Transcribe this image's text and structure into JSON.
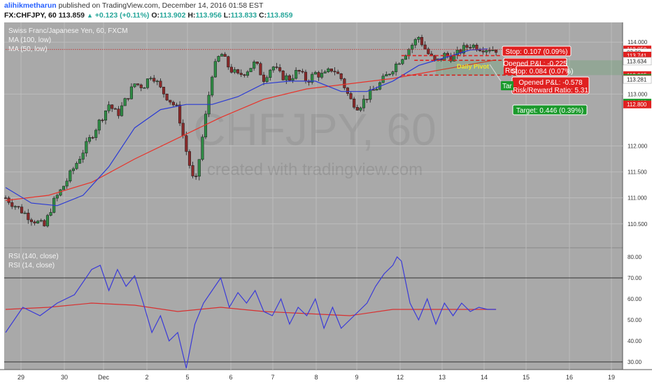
{
  "header": {
    "author": "alihikmetharun",
    "published_text": "published on TradingView.com, December 14, 2016 01:58 EST",
    "symbol": "FX:CHFJPY, 60",
    "last": "113.859",
    "change_arrow": "▲",
    "change": "+0.123 (+0.11%)",
    "o_label": "O:",
    "o_value": "113.902",
    "h_label": "H:",
    "h_value": "113.956",
    "l_label": "L:",
    "l_value": "113.833",
    "c_label": "C:",
    "c_value": "113.859"
  },
  "legend": {
    "title": "Swiss Franc/Japanese Yen, 60, FXCM",
    "ma100": "MA (100, low)",
    "ma50": "MA (50, low)",
    "rsi140": "RSI (140, close)",
    "rsi14": "RSI (14, close)"
  },
  "watermark": {
    "symbol": "CHFJPY, 60",
    "tagline": "created with tradingview.com"
  },
  "colors": {
    "pane_bg": "#a9a9a9",
    "bull_candle": "#2f8c45",
    "bear_candle": "#8a2a2a",
    "ma100": "#e8332a",
    "ma50": "#2b3bd4",
    "rsi14": "#3a3ad8",
    "rsi140": "#d83030",
    "stop_red": "#e02020",
    "target_green": "#1b9a2c"
  },
  "annotations": {
    "stop1": "Stop: 0.107 (0.09%)",
    "opened_pl1": "Opened P&L: -0.225",
    "risk_cut": "Risk",
    "stop2": "Stop: 0.084 (0.07%)",
    "opened_pl2": "Opened P&L: -0.578",
    "rr2": "Risk/Reward Ratio: 5.31",
    "target_cut": "Tar",
    "target": "Target: 0.446 (0.39%)",
    "daily_pivot": "Daily Pivot"
  },
  "price_badges": [
    {
      "value": "113.859",
      "price": 113.859,
      "color": "#e02020"
    },
    {
      "value": "02:08",
      "price": 113.8,
      "color": "#ffffff"
    },
    {
      "value": "113.741",
      "price": 113.741,
      "color": "#e02020"
    },
    {
      "value": "113.650",
      "price": 113.65,
      "color": "#e02020"
    },
    {
      "value": "113.634",
      "price": 113.634,
      "color": "#ffffff"
    },
    {
      "value": "113.365",
      "price": 113.365,
      "color": "#e02020"
    },
    {
      "value": "113.313",
      "price": 113.313,
      "color": "#1b9a2c"
    },
    {
      "value": "113.290",
      "price": 113.29,
      "color": "#e02020"
    },
    {
      "value": "113.281",
      "price": 113.281,
      "color": "#ffffff"
    },
    {
      "value": "112.835",
      "price": 112.835,
      "color": "#1b9a2c"
    },
    {
      "value": "112.800",
      "price": 112.8,
      "color": "#e02020"
    }
  ],
  "chart_data": {
    "type": "candlestick",
    "x_ticks": [
      "29",
      "30",
      "Dec",
      "2",
      "5",
      "6",
      "7",
      "8",
      "9",
      "12",
      "13",
      "14",
      "15",
      "16",
      "19"
    ],
    "price_axis": {
      "ticks": [
        "110.500",
        "111.000",
        "111.500",
        "112.000",
        "113.000",
        "114.000"
      ],
      "ylim": [
        110.2,
        114.3
      ]
    },
    "rsi_axis": {
      "ticks": [
        "30.00",
        "40.00",
        "50.00",
        "60.00",
        "70.00",
        "80.00"
      ],
      "ylim": [
        27,
        83
      ],
      "bands": [
        30,
        70
      ]
    },
    "close_path": [
      [
        0,
        111.0
      ],
      [
        3,
        110.8
      ],
      [
        6,
        110.6
      ],
      [
        9,
        110.45
      ],
      [
        11,
        110.9
      ],
      [
        14,
        111.3
      ],
      [
        16,
        111.6
      ],
      [
        18,
        111.9
      ],
      [
        20,
        112.2
      ],
      [
        22,
        112.5
      ],
      [
        24,
        112.8
      ],
      [
        26,
        112.6
      ],
      [
        28,
        112.9
      ],
      [
        30,
        113.2
      ],
      [
        32,
        113.15
      ],
      [
        34,
        113.4
      ],
      [
        36,
        113.1
      ],
      [
        38,
        112.9
      ],
      [
        40,
        112.7
      ],
      [
        42,
        111.9
      ],
      [
        44,
        111.2
      ],
      [
        46,
        112.3
      ],
      [
        48,
        113.4
      ],
      [
        50,
        113.8
      ],
      [
        52,
        113.5
      ],
      [
        54,
        113.35
      ],
      [
        56,
        113.45
      ],
      [
        58,
        113.6
      ],
      [
        60,
        113.3
      ],
      [
        62,
        113.55
      ],
      [
        64,
        113.35
      ],
      [
        66,
        113.3
      ],
      [
        68,
        113.45
      ],
      [
        70,
        113.25
      ],
      [
        72,
        113.4
      ],
      [
        74,
        113.35
      ],
      [
        76,
        113.5
      ],
      [
        78,
        113.3
      ],
      [
        80,
        112.9
      ],
      [
        82,
        112.75
      ],
      [
        84,
        112.95
      ],
      [
        86,
        113.1
      ],
      [
        88,
        113.3
      ],
      [
        90,
        113.5
      ],
      [
        92,
        113.7
      ],
      [
        94,
        113.9
      ],
      [
        96,
        114.1
      ],
      [
        98,
        113.8
      ],
      [
        100,
        113.6
      ],
      [
        102,
        113.75
      ],
      [
        104,
        113.7
      ],
      [
        106,
        113.85
      ],
      [
        108,
        113.95
      ],
      [
        110,
        113.9
      ],
      [
        112,
        113.88
      ],
      [
        114,
        113.86
      ]
    ],
    "ma100": [
      [
        0,
        110.95
      ],
      [
        10,
        111.05
      ],
      [
        20,
        111.3
      ],
      [
        30,
        111.75
      ],
      [
        40,
        112.15
      ],
      [
        50,
        112.55
      ],
      [
        60,
        112.9
      ],
      [
        70,
        113.1
      ],
      [
        80,
        113.2
      ],
      [
        90,
        113.3
      ],
      [
        100,
        113.45
      ],
      [
        110,
        113.6
      ],
      [
        114,
        113.66
      ]
    ],
    "ma50": [
      [
        0,
        111.2
      ],
      [
        6,
        110.9
      ],
      [
        12,
        110.85
      ],
      [
        18,
        111.05
      ],
      [
        24,
        111.6
      ],
      [
        30,
        112.35
      ],
      [
        36,
        112.7
      ],
      [
        42,
        112.8
      ],
      [
        48,
        112.8
      ],
      [
        54,
        112.95
      ],
      [
        60,
        113.2
      ],
      [
        66,
        113.25
      ],
      [
        72,
        113.25
      ],
      [
        78,
        113.05
      ],
      [
        84,
        113.05
      ],
      [
        90,
        113.25
      ],
      [
        96,
        113.55
      ],
      [
        102,
        113.7
      ],
      [
        108,
        113.85
      ],
      [
        112,
        113.87
      ]
    ],
    "rsi14": [
      [
        0,
        44
      ],
      [
        4,
        56
      ],
      [
        8,
        52
      ],
      [
        12,
        58
      ],
      [
        16,
        62
      ],
      [
        20,
        74
      ],
      [
        22,
        76
      ],
      [
        24,
        64
      ],
      [
        26,
        74
      ],
      [
        28,
        66
      ],
      [
        30,
        71
      ],
      [
        32,
        58
      ],
      [
        34,
        44
      ],
      [
        36,
        52
      ],
      [
        38,
        40
      ],
      [
        40,
        44
      ],
      [
        42,
        27
      ],
      [
        44,
        48
      ],
      [
        46,
        58
      ],
      [
        48,
        64
      ],
      [
        50,
        70
      ],
      [
        52,
        56
      ],
      [
        54,
        63
      ],
      [
        56,
        58
      ],
      [
        58,
        64
      ],
      [
        60,
        54
      ],
      [
        62,
        52
      ],
      [
        64,
        60
      ],
      [
        66,
        48
      ],
      [
        68,
        56
      ],
      [
        70,
        52
      ],
      [
        72,
        60
      ],
      [
        74,
        46
      ],
      [
        76,
        56
      ],
      [
        78,
        46
      ],
      [
        80,
        50
      ],
      [
        82,
        54
      ],
      [
        84,
        58
      ],
      [
        86,
        66
      ],
      [
        88,
        72
      ],
      [
        90,
        76
      ],
      [
        91,
        80
      ],
      [
        92,
        78
      ],
      [
        94,
        58
      ],
      [
        96,
        50
      ],
      [
        98,
        60
      ],
      [
        100,
        48
      ],
      [
        102,
        58
      ],
      [
        104,
        52
      ],
      [
        106,
        58
      ],
      [
        108,
        54
      ],
      [
        110,
        56
      ],
      [
        112,
        55
      ],
      [
        114,
        55
      ]
    ],
    "rsi140": [
      [
        0,
        55
      ],
      [
        10,
        56
      ],
      [
        20,
        58
      ],
      [
        30,
        57
      ],
      [
        40,
        54
      ],
      [
        50,
        56
      ],
      [
        60,
        54
      ],
      [
        70,
        53
      ],
      [
        80,
        52
      ],
      [
        90,
        55
      ],
      [
        100,
        55
      ],
      [
        110,
        55
      ],
      [
        114,
        55
      ]
    ],
    "levels": [
      {
        "name": "stop",
        "price": 113.741,
        "from": 92,
        "to": 120
      },
      {
        "name": "entry",
        "price": 113.65,
        "from": 95,
        "to": 120
      },
      {
        "name": "target",
        "price": 113.365,
        "from": 92,
        "to": 120
      },
      {
        "name": "last",
        "price": 113.859,
        "from": 0,
        "to": 120
      }
    ],
    "grid": true,
    "legend": "top-left"
  }
}
